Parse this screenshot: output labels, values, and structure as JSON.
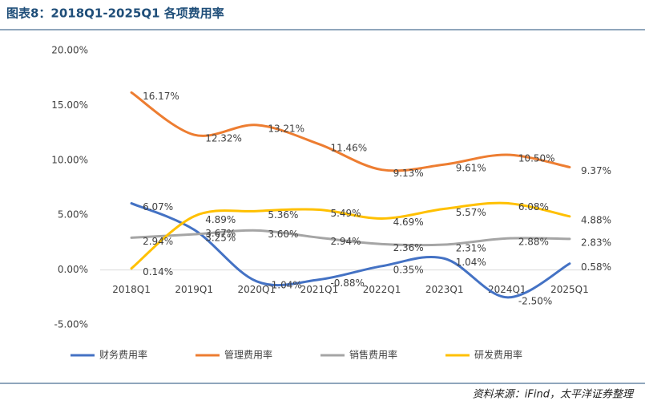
{
  "chart_data": {
    "type": "line",
    "title": "图表8：2018Q1-2025Q1 各项费用率",
    "source": "资料来源：iFind，太平洋证券整理",
    "categories": [
      "2018Q1",
      "2019Q1",
      "2020Q1",
      "2021Q1",
      "2022Q1",
      "2023Q1",
      "2024Q1",
      "2025Q1"
    ],
    "ylim": [
      -5,
      20
    ],
    "yticks": [
      {
        "value": -5,
        "label": "-5.00%"
      },
      {
        "value": 0,
        "label": "0.00%"
      },
      {
        "value": 5,
        "label": "5.00%"
      },
      {
        "value": 10,
        "label": "10.00%"
      },
      {
        "value": 15,
        "label": "15.00%"
      },
      {
        "value": 20,
        "label": "20.00%"
      }
    ],
    "legend": "bottom",
    "series": [
      {
        "name": "财务费用率",
        "color": "#4472c4",
        "values": [
          6.07,
          3.67,
          -1.04,
          -0.88,
          0.35,
          1.04,
          -2.5,
          0.58
        ],
        "value_labels": [
          "6.07%",
          "3.67%",
          "-1.04%",
          "-0.88%",
          "0.35%",
          "1.04%",
          "-2.50%",
          "0.58%"
        ]
      },
      {
        "name": "管理费用率",
        "color": "#ed7d31",
        "values": [
          16.17,
          12.32,
          13.21,
          11.46,
          9.13,
          9.61,
          10.5,
          9.37
        ],
        "value_labels": [
          "16.17%",
          "12.32%",
          "13.21%",
          "11.46%",
          "9.13%",
          "9.61%",
          "10.50%",
          "9.37%"
        ]
      },
      {
        "name": "销售费用率",
        "color": "#a5a5a5",
        "values": [
          2.94,
          3.25,
          3.6,
          2.94,
          2.36,
          2.31,
          2.88,
          2.83
        ],
        "value_labels": [
          "2.94%",
          "3.25%",
          "3.60%",
          "2.94%",
          "2.36%",
          "2.31%",
          "2.88%",
          "2.83%"
        ]
      },
      {
        "name": "研发费用率",
        "color": "#ffc000",
        "values": [
          0.14,
          4.89,
          5.36,
          5.49,
          4.69,
          5.57,
          6.08,
          4.88
        ],
        "value_labels": [
          "0.14%",
          "4.89%",
          "5.36%",
          "5.49%",
          "4.69%",
          "5.57%",
          "6.08%",
          "4.88%"
        ]
      }
    ]
  }
}
